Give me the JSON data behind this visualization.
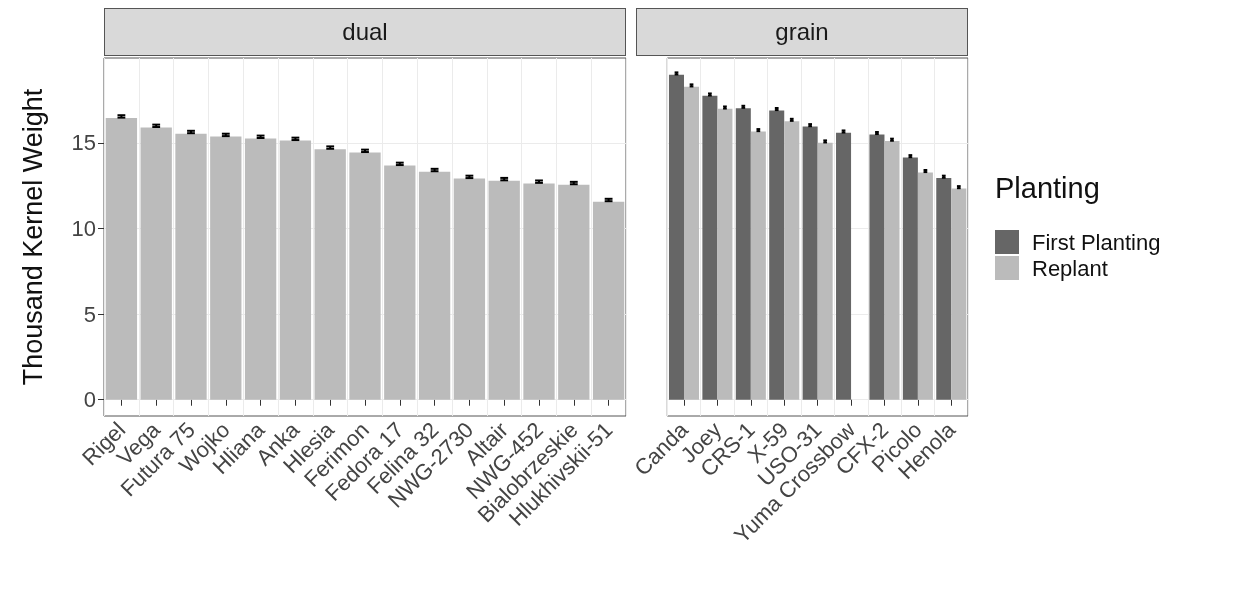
{
  "chart_data": [
    {
      "type": "bar",
      "title": "dual",
      "ylabel": "Thousand Kernel Weight",
      "categories": [
        "Rigel",
        "Vega",
        "Futura 75",
        "Wojko",
        "Hliana",
        "Anka",
        "Hlesia",
        "Ferimon",
        "Fedora 17",
        "Felina 32",
        "NWG-2730",
        "Altair",
        "NWG-452",
        "Bialobrzeskie",
        "Hlukhivskii-51"
      ],
      "series": [
        {
          "color": "#bbbbbb",
          "values": [
            16.44,
            15.89,
            15.53,
            15.36,
            15.25,
            15.13,
            14.62,
            14.43,
            13.67,
            13.31,
            12.91,
            12.78,
            12.63,
            12.55,
            11.56
          ],
          "errors": [
            [
              16.47,
              16.61
            ],
            [
              15.92,
              16.06
            ],
            [
              15.56,
              15.7
            ],
            [
              15.39,
              15.53
            ],
            [
              15.28,
              15.42
            ],
            [
              15.16,
              15.3
            ],
            [
              14.65,
              14.79
            ],
            [
              14.46,
              14.6
            ],
            [
              13.7,
              13.84
            ],
            [
              13.34,
              13.48
            ],
            [
              12.94,
              13.08
            ],
            [
              12.81,
              12.95
            ],
            [
              12.66,
              12.8
            ],
            [
              12.58,
              12.72
            ],
            [
              11.59,
              11.73
            ]
          ]
        }
      ],
      "ylim": [
        -0.95,
        19.95
      ],
      "yticks": [
        0,
        5,
        10,
        15
      ],
      "grid": true,
      "legend": false
    },
    {
      "type": "bar",
      "title": "grain",
      "legend_title": "Planting",
      "categories": [
        "Canda",
        "Joey",
        "CRS-1",
        "X-59",
        "USO-31",
        "Yuma Crossbow",
        "CFX-2",
        "Picolo",
        "Henola"
      ],
      "series": [
        {
          "name": "First Planting",
          "color": "#666666",
          "values": [
            18.97,
            17.74,
            17.02,
            16.89,
            15.95,
            15.58,
            15.49,
            14.14,
            12.94
          ],
          "errors": [
            [
              18.99,
              19.11
            ],
            [
              17.76,
              17.88
            ],
            [
              17.04,
              17.16
            ],
            [
              16.91,
              17.03
            ],
            [
              15.97,
              16.09
            ],
            [
              15.6,
              15.72
            ],
            [
              15.51,
              15.63
            ],
            [
              14.16,
              14.28
            ],
            [
              12.96,
              13.08
            ]
          ]
        },
        {
          "name": "Replant",
          "color": "#bbbbbb",
          "values": [
            18.27,
            16.98,
            15.66,
            16.26,
            15.0,
            null,
            15.1,
            13.27,
            12.33
          ],
          "errors": [
            [
              18.29,
              18.41
            ],
            [
              17.0,
              17.12
            ],
            [
              15.68,
              15.8
            ],
            [
              16.28,
              16.4
            ],
            [
              15.02,
              15.14
            ],
            null,
            [
              15.12,
              15.24
            ],
            [
              13.29,
              13.41
            ],
            [
              12.35,
              12.47
            ]
          ]
        }
      ],
      "ylim": [
        -0.95,
        19.95
      ],
      "yticks": [
        0,
        5,
        10,
        15
      ],
      "tick_labels": "x",
      "grid": true,
      "legend": "right"
    }
  ]
}
